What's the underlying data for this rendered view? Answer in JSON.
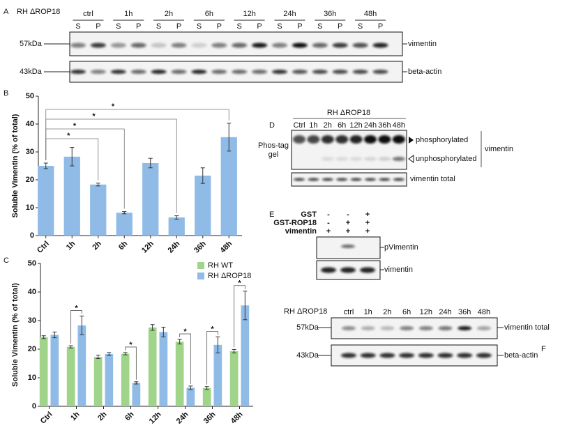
{
  "panels": {
    "A": {
      "label": "A",
      "strain": "RH ΔROP18",
      "times": [
        "ctrl",
        "1h",
        "2h",
        "6h",
        "12h",
        "24h",
        "36h",
        "48h"
      ],
      "lanes": [
        "S",
        "P",
        "S",
        "P",
        "S",
        "P",
        "S",
        "P",
        "S",
        "P",
        "S",
        "P",
        "S",
        "P",
        "S",
        "P"
      ],
      "markers": [
        "57kDa",
        "43kDa"
      ],
      "proteins": [
        "vimentin",
        "beta-actin"
      ]
    },
    "D": {
      "label": "D",
      "strain": "RH ΔROP18",
      "lanes": [
        "Ctrl",
        "1h",
        "2h",
        "6h",
        "12h",
        "24h",
        "36h",
        "48h"
      ],
      "gel_label": [
        "Phos-tag",
        "gel"
      ],
      "bands": [
        "phosphorylated",
        "unphosphorylated"
      ],
      "protein": "vimentin",
      "loading": "vimentin total"
    },
    "E": {
      "label": "E",
      "rows": [
        {
          "name": "GST",
          "signs": [
            "-",
            "-",
            "+"
          ]
        },
        {
          "name": "GST-ROP18",
          "signs": [
            "-",
            "+",
            "+"
          ]
        },
        {
          "name": "vimentin",
          "signs": [
            "+",
            "+",
            "+"
          ]
        }
      ],
      "blots": [
        "pVimentin",
        "vimentin"
      ]
    },
    "F": {
      "label": "F",
      "strain": "RH ΔROP18",
      "times": [
        "ctrl",
        "1h",
        "2h",
        "6h",
        "12h",
        "24h",
        "36h",
        "48h"
      ],
      "markers": [
        "57kDa",
        "43kDa"
      ],
      "proteins": [
        "vimentin total",
        "beta-actin"
      ]
    }
  },
  "chart_data": [
    {
      "type": "bar",
      "panel": "B",
      "y_label": "Soluble Vimentin (% of total)",
      "categories": [
        "Ctrl",
        "1h",
        "2h",
        "6h",
        "12h",
        "24h",
        "36h",
        "48h"
      ],
      "values": [
        25,
        28.3,
        18.3,
        8.2,
        26,
        6.5,
        21.5,
        35.3
      ],
      "errors": [
        1,
        3.3,
        0.5,
        0.4,
        1.7,
        0.6,
        2.8,
        5
      ],
      "color": "#8fbbe6",
      "ylim": [
        0,
        50
      ],
      "yticks": [
        0,
        10,
        20,
        30,
        40,
        50
      ],
      "comparisons": [
        {
          "categories": [
            "Ctrl",
            "2h"
          ],
          "label": "*"
        },
        {
          "categories": [
            "Ctrl",
            "6h"
          ],
          "label": "*"
        },
        {
          "categories": [
            "Ctrl",
            "24h"
          ],
          "label": "*"
        },
        {
          "categories": [
            "Ctrl",
            "48h"
          ],
          "label": "*"
        }
      ]
    },
    {
      "type": "bar",
      "panel": "C",
      "y_label": "Soluble Vimentin (% of total)",
      "categories": [
        "Ctrl",
        "1h",
        "2h",
        "6h",
        "12h",
        "24h",
        "36h",
        "48h"
      ],
      "series": [
        {
          "name": "RH WT",
          "color": "#9fd48a",
          "values": [
            24.2,
            20.8,
            17.3,
            18.4,
            27.6,
            22.6,
            6.4,
            19.3
          ],
          "errors": [
            0.5,
            0.4,
            0.6,
            0.4,
            1,
            0.8,
            0.5,
            0.6
          ]
        },
        {
          "name": "RH ΔROP18",
          "color": "#8fbbe6",
          "values": [
            25,
            28.3,
            18.3,
            8.2,
            26,
            6.5,
            21.5,
            35.3
          ],
          "errors": [
            1,
            3.3,
            0.5,
            0.4,
            1.7,
            0.6,
            2.8,
            5
          ]
        }
      ],
      "legend": "upper right",
      "ylim": [
        0,
        50
      ],
      "yticks": [
        0,
        10,
        20,
        30,
        40,
        50
      ],
      "comparisons": [
        {
          "category": "1h",
          "label": "*"
        },
        {
          "category": "6h",
          "label": "*"
        },
        {
          "category": "24h",
          "label": "*"
        },
        {
          "category": "36h",
          "label": "*"
        },
        {
          "category": "48h",
          "label": "*"
        }
      ]
    }
  ]
}
